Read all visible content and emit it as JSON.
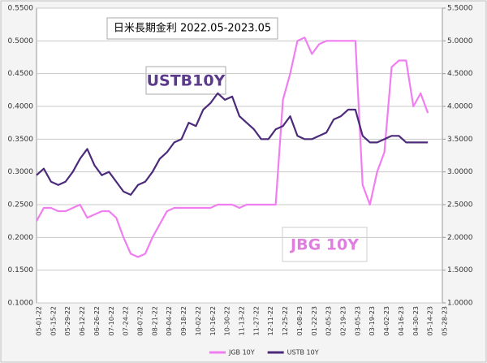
{
  "chart_data": {
    "type": "line",
    "title": "日米長期金利 2022.05-2023.05",
    "annotations": [
      "USTB10Y",
      "JBG 10Y"
    ],
    "categories": [
      "05-01-22",
      null,
      "05-15-22",
      null,
      "05-29-22",
      null,
      "06-12-22",
      null,
      "06-26-22",
      null,
      "07-10-22",
      null,
      "07-24-22",
      null,
      "08-07-22",
      null,
      "08-21-22",
      null,
      "09-04-22",
      null,
      "09-18-22",
      null,
      "10-02-22",
      null,
      "10-16-22",
      null,
      "10-30-22",
      null,
      "11-13-22",
      null,
      "11-27-22",
      null,
      "12-11-22",
      null,
      "12-25-22",
      null,
      "01-08-23",
      null,
      "01-22-23",
      null,
      "02-05-23",
      null,
      "02-19-23",
      null,
      "03-05-23",
      null,
      "03-19-23",
      null,
      "04-02-23",
      null,
      "04-16-23",
      null,
      "04-30-23",
      null,
      "05-14-23",
      null,
      "05-28-23"
    ],
    "series": [
      {
        "name": "JGB 10Y",
        "color": "#f07ef0",
        "axis": "y",
        "values": [
          0.225,
          0.245,
          0.245,
          0.24,
          0.24,
          0.245,
          0.25,
          0.23,
          0.235,
          0.24,
          0.24,
          0.23,
          0.2,
          0.175,
          0.17,
          0.175,
          0.2,
          0.22,
          0.24,
          0.245,
          0.245,
          0.245,
          0.245,
          0.245,
          0.245,
          0.25,
          0.25,
          0.25,
          0.245,
          0.25,
          0.25,
          0.25,
          0.25,
          0.25,
          0.41,
          0.45,
          0.5,
          0.505,
          0.48,
          0.495,
          0.5,
          0.5,
          0.5,
          0.5,
          0.5,
          0.28,
          0.25,
          0.3,
          0.33,
          0.46,
          0.47,
          0.47,
          0.4,
          0.42,
          0.39,
          null,
          null
        ]
      },
      {
        "name": "USTB 10Y",
        "color": "#4b2a7a",
        "axis": "y2",
        "values": [
          2.95,
          3.05,
          2.85,
          2.8,
          2.85,
          3.0,
          3.2,
          3.35,
          3.1,
          2.95,
          3.0,
          2.85,
          2.7,
          2.65,
          2.8,
          2.85,
          3.0,
          3.2,
          3.3,
          3.45,
          3.5,
          3.75,
          3.7,
          3.95,
          4.05,
          4.2,
          4.1,
          4.15,
          3.85,
          3.75,
          3.65,
          3.5,
          3.5,
          3.65,
          3.7,
          3.85,
          3.55,
          3.5,
          3.5,
          3.55,
          3.6,
          3.8,
          3.85,
          3.95,
          3.95,
          3.55,
          3.45,
          3.45,
          3.5,
          3.55,
          3.55,
          3.45,
          3.45,
          3.45,
          3.45,
          null,
          null
        ]
      }
    ],
    "ylim": [
      0.1,
      0.55
    ],
    "yticks": [
      {
        "value": 0.1,
        "label": "0.1000"
      },
      {
        "value": 0.15,
        "label": "0.1500"
      },
      {
        "value": 0.2,
        "label": "0.2000"
      },
      {
        "value": 0.25,
        "label": "0.2500"
      },
      {
        "value": 0.3,
        "label": "0.3000"
      },
      {
        "value": 0.35,
        "label": "0.3500"
      },
      {
        "value": 0.4,
        "label": "0.4000"
      },
      {
        "value": 0.45,
        "label": "0.4500"
      },
      {
        "value": 0.5,
        "label": "0.5000"
      },
      {
        "value": 0.55,
        "label": "0.5500"
      }
    ],
    "y2lim": [
      1.0,
      5.5
    ],
    "y2ticks": [
      {
        "value": 1.0,
        "label": "1.0000"
      },
      {
        "value": 1.5,
        "label": "1.5000"
      },
      {
        "value": 2.0,
        "label": "2.0000"
      },
      {
        "value": 2.5,
        "label": "2.5000"
      },
      {
        "value": 3.0,
        "label": "3.0000"
      },
      {
        "value": 3.5,
        "label": "3.5000"
      },
      {
        "value": 4.0,
        "label": "4.0000"
      },
      {
        "value": 4.5,
        "label": "4.5000"
      },
      {
        "value": 5.0,
        "label": "5.0000"
      },
      {
        "value": 5.5,
        "label": "5.5000"
      }
    ],
    "grid": true,
    "legend": "bottom"
  }
}
